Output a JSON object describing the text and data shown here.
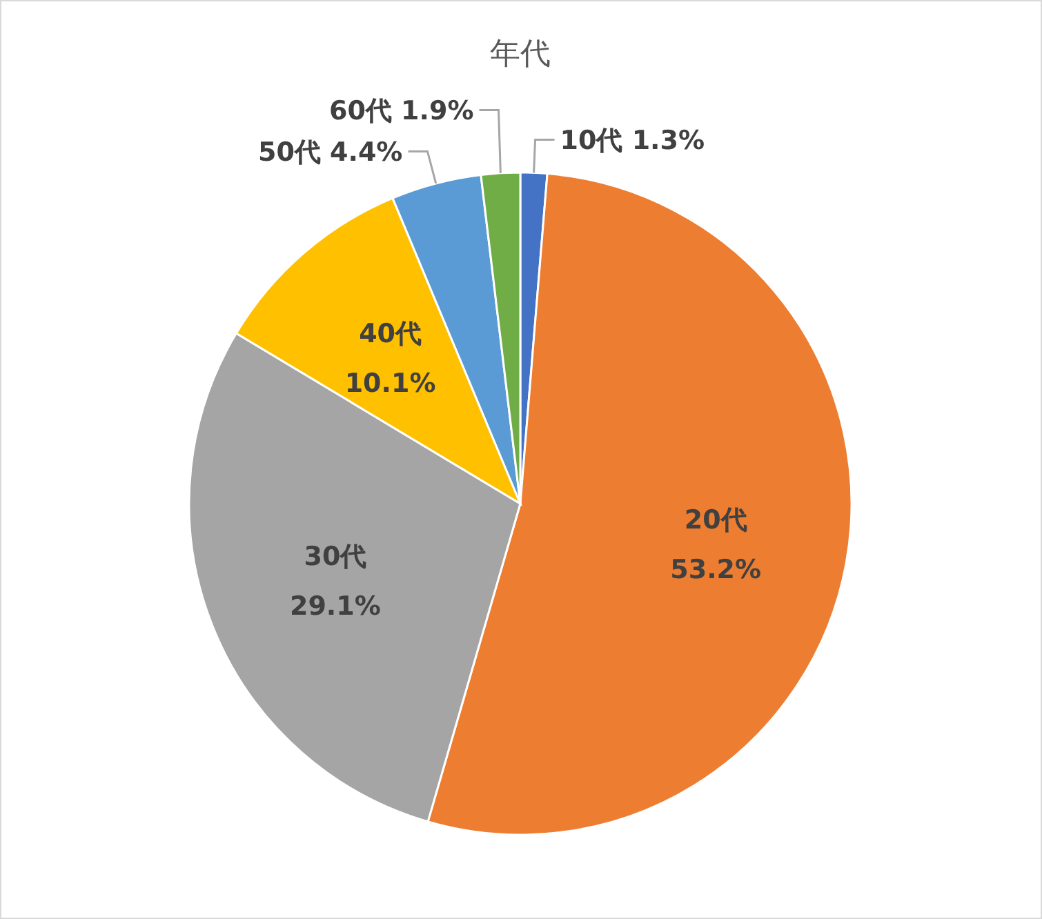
{
  "chart_data": {
    "type": "pie",
    "title": "年代",
    "categories": [
      "10代",
      "20代",
      "30代",
      "40代",
      "50代",
      "60代"
    ],
    "values": [
      1.3,
      53.2,
      29.1,
      10.1,
      4.4,
      1.9
    ],
    "value_labels": [
      "1.3%",
      "53.2%",
      "29.1%",
      "10.1%",
      "4.4%",
      "1.9%"
    ],
    "colors": [
      "#4472c4",
      "#ed7d31",
      "#a5a5a5",
      "#ffc000",
      "#5b9bd5",
      "#70ad47"
    ],
    "legend": false
  }
}
